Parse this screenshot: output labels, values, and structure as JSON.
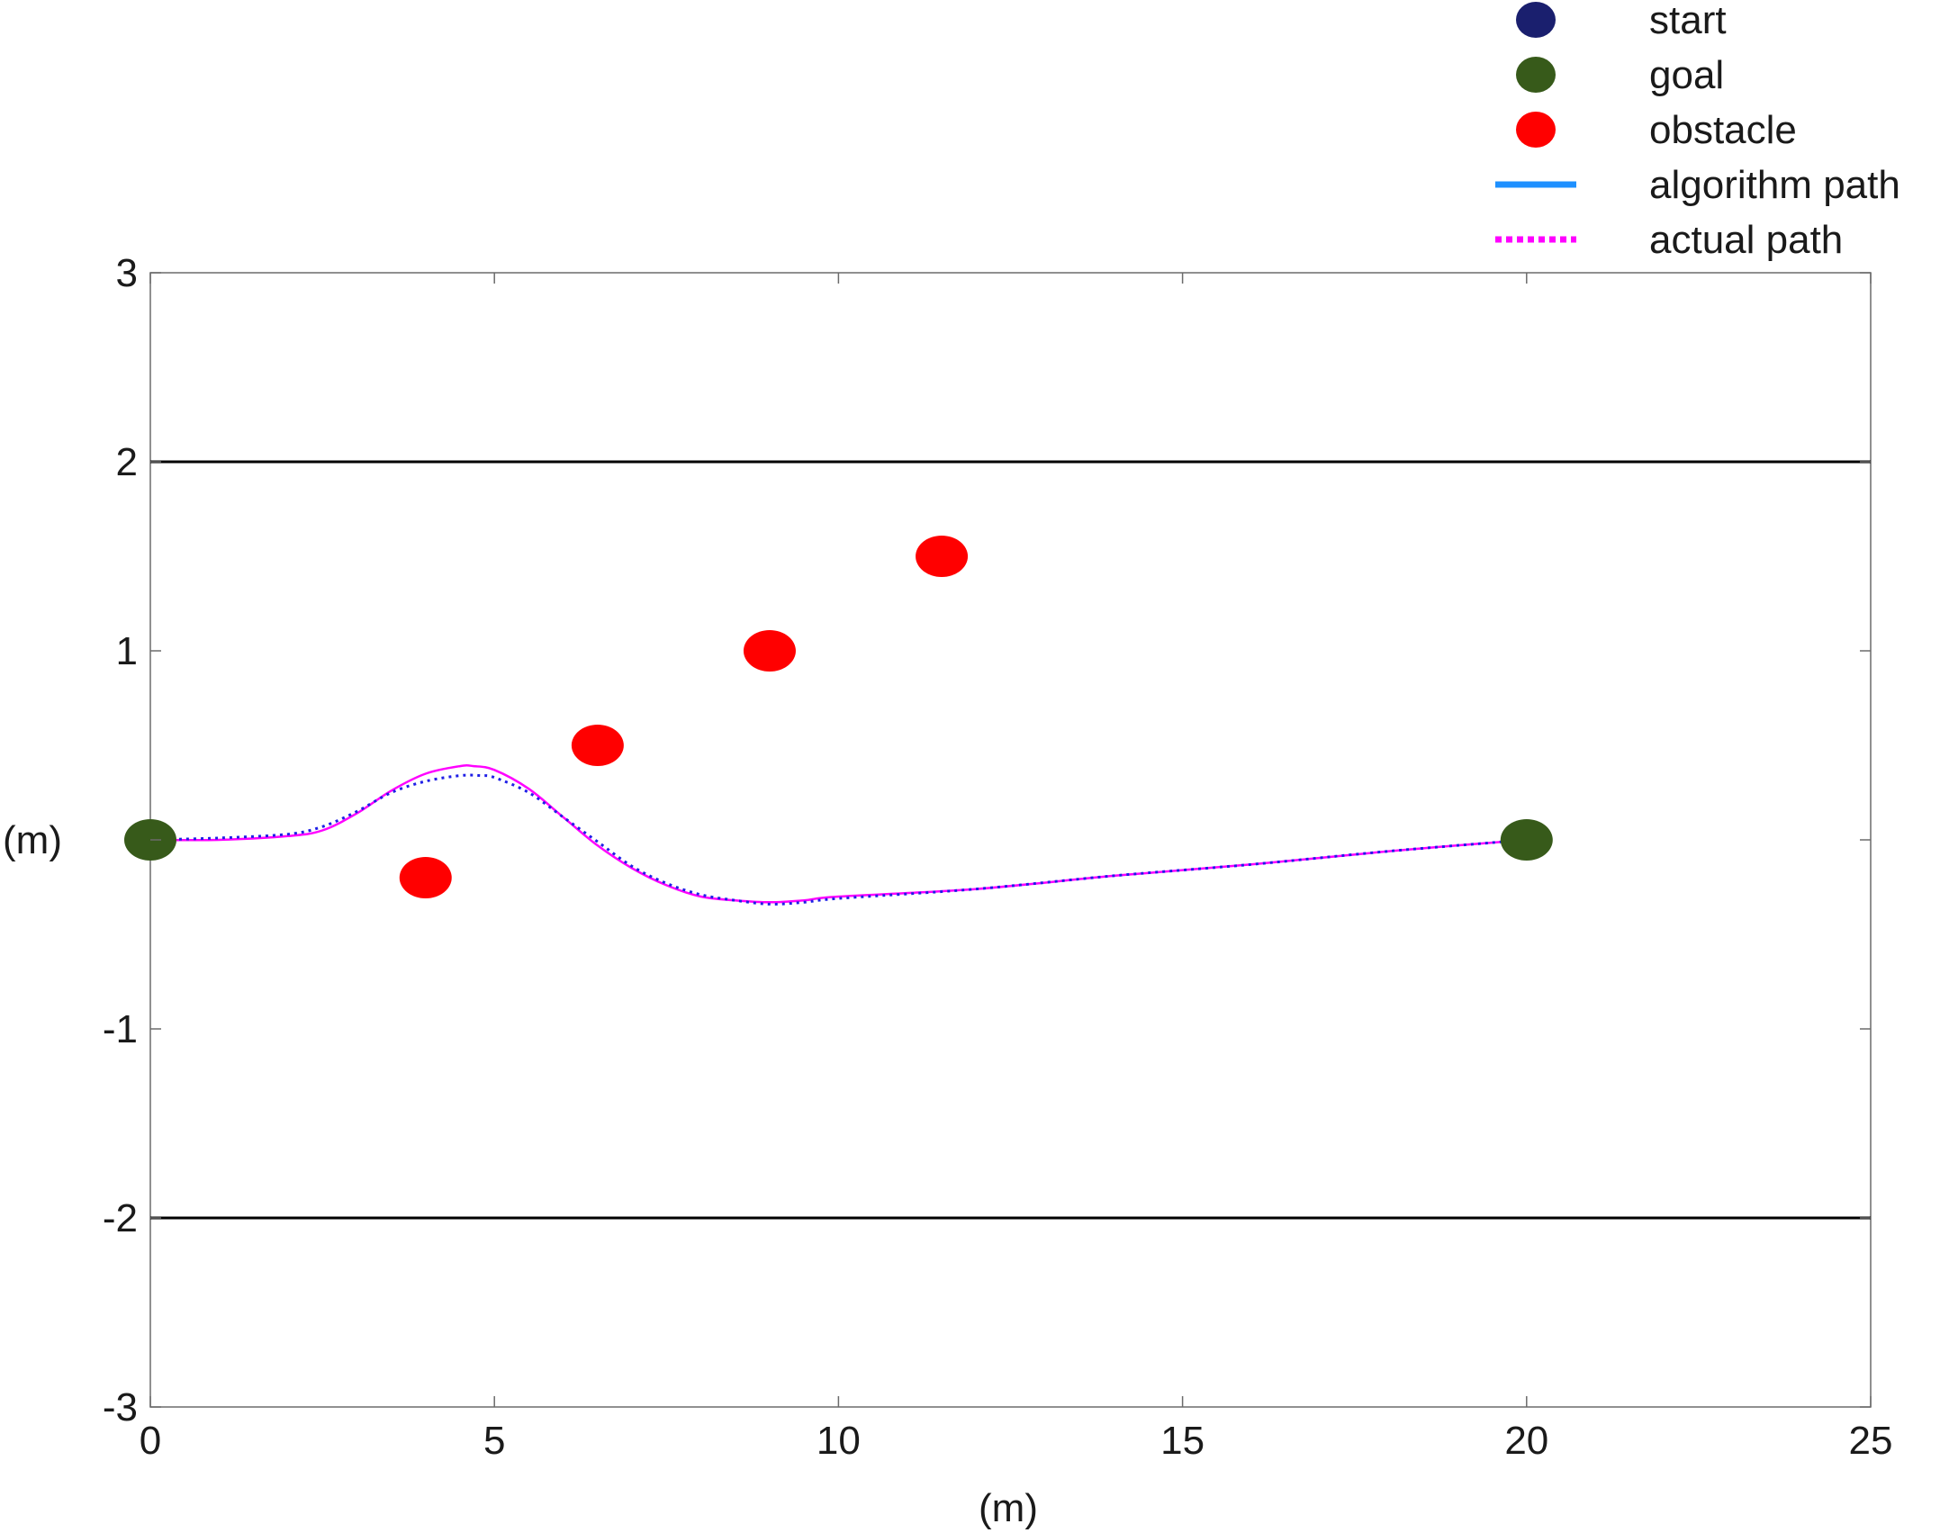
{
  "chart_data": {
    "type": "scatter",
    "title": "",
    "xlabel": "(m)",
    "ylabel": "(m)",
    "xlim": [
      0,
      25
    ],
    "ylim": [
      -3,
      3
    ],
    "xticks": [
      "0",
      "5",
      "10",
      "15",
      "20",
      "25"
    ],
    "yticks": [
      "-3",
      "-2",
      "-1",
      "",
      "1",
      "2",
      "3"
    ],
    "ytick_values": [
      -3,
      -2,
      -1,
      0,
      1,
      2,
      3
    ],
    "xtick_values": [
      0,
      5,
      10,
      15,
      20,
      25
    ],
    "grid": false,
    "legend_position": "top-right",
    "boundaries": [
      {
        "y": 2,
        "color": "#000000"
      },
      {
        "y": -2,
        "color": "#000000"
      }
    ],
    "legend": [
      {
        "label": "start",
        "marker": "circle",
        "color": "#1a1f6e"
      },
      {
        "label": "goal",
        "marker": "circle",
        "color": "#375a1a"
      },
      {
        "label": "obstacle",
        "marker": "circle",
        "color": "#ff0000"
      },
      {
        "label": "algorithm path",
        "marker": "solid-line",
        "color": "#1e90ff"
      },
      {
        "label": "actual path",
        "marker": "dotted-line",
        "color": "#ff00ff"
      }
    ],
    "start": {
      "x": 0,
      "y": 0,
      "color": "#375a1a"
    },
    "goal": {
      "x": 20,
      "y": 0,
      "color": "#375a1a"
    },
    "obstacles": [
      {
        "x": 4,
        "y": -0.2
      },
      {
        "x": 6.5,
        "y": 0.5
      },
      {
        "x": 9,
        "y": 1.0
      },
      {
        "x": 11.5,
        "y": 1.5
      }
    ],
    "obstacle_color": "#ff0000",
    "series": [
      {
        "style": "solid",
        "color": "#ff00ff",
        "x": [
          0,
          1,
          2,
          2.5,
          3,
          3.5,
          4,
          4.5,
          4.7,
          5,
          5.5,
          6,
          6.5,
          7,
          7.5,
          8,
          8.5,
          9,
          9.5,
          10,
          12,
          14,
          16,
          18,
          20
        ],
        "y": [
          0,
          0.0,
          0.02,
          0.05,
          0.14,
          0.26,
          0.35,
          0.39,
          0.39,
          0.37,
          0.27,
          0.12,
          -0.03,
          -0.15,
          -0.24,
          -0.3,
          -0.32,
          -0.33,
          -0.32,
          -0.3,
          -0.26,
          -0.19,
          -0.13,
          -0.06,
          0
        ]
      },
      {
        "style": "dotted",
        "color": "#1e1ee6",
        "x": [
          0,
          1,
          2,
          2.5,
          3,
          3.5,
          4,
          4.5,
          4.8,
          5,
          5.5,
          6,
          6.5,
          7,
          7.5,
          8,
          8.5,
          9,
          9.5,
          10,
          12,
          14,
          16,
          18,
          20
        ],
        "y": [
          0,
          0.01,
          0.03,
          0.07,
          0.15,
          0.25,
          0.31,
          0.34,
          0.34,
          0.33,
          0.25,
          0.12,
          -0.01,
          -0.14,
          -0.23,
          -0.29,
          -0.32,
          -0.34,
          -0.33,
          -0.31,
          -0.26,
          -0.19,
          -0.13,
          -0.06,
          0
        ]
      }
    ]
  }
}
